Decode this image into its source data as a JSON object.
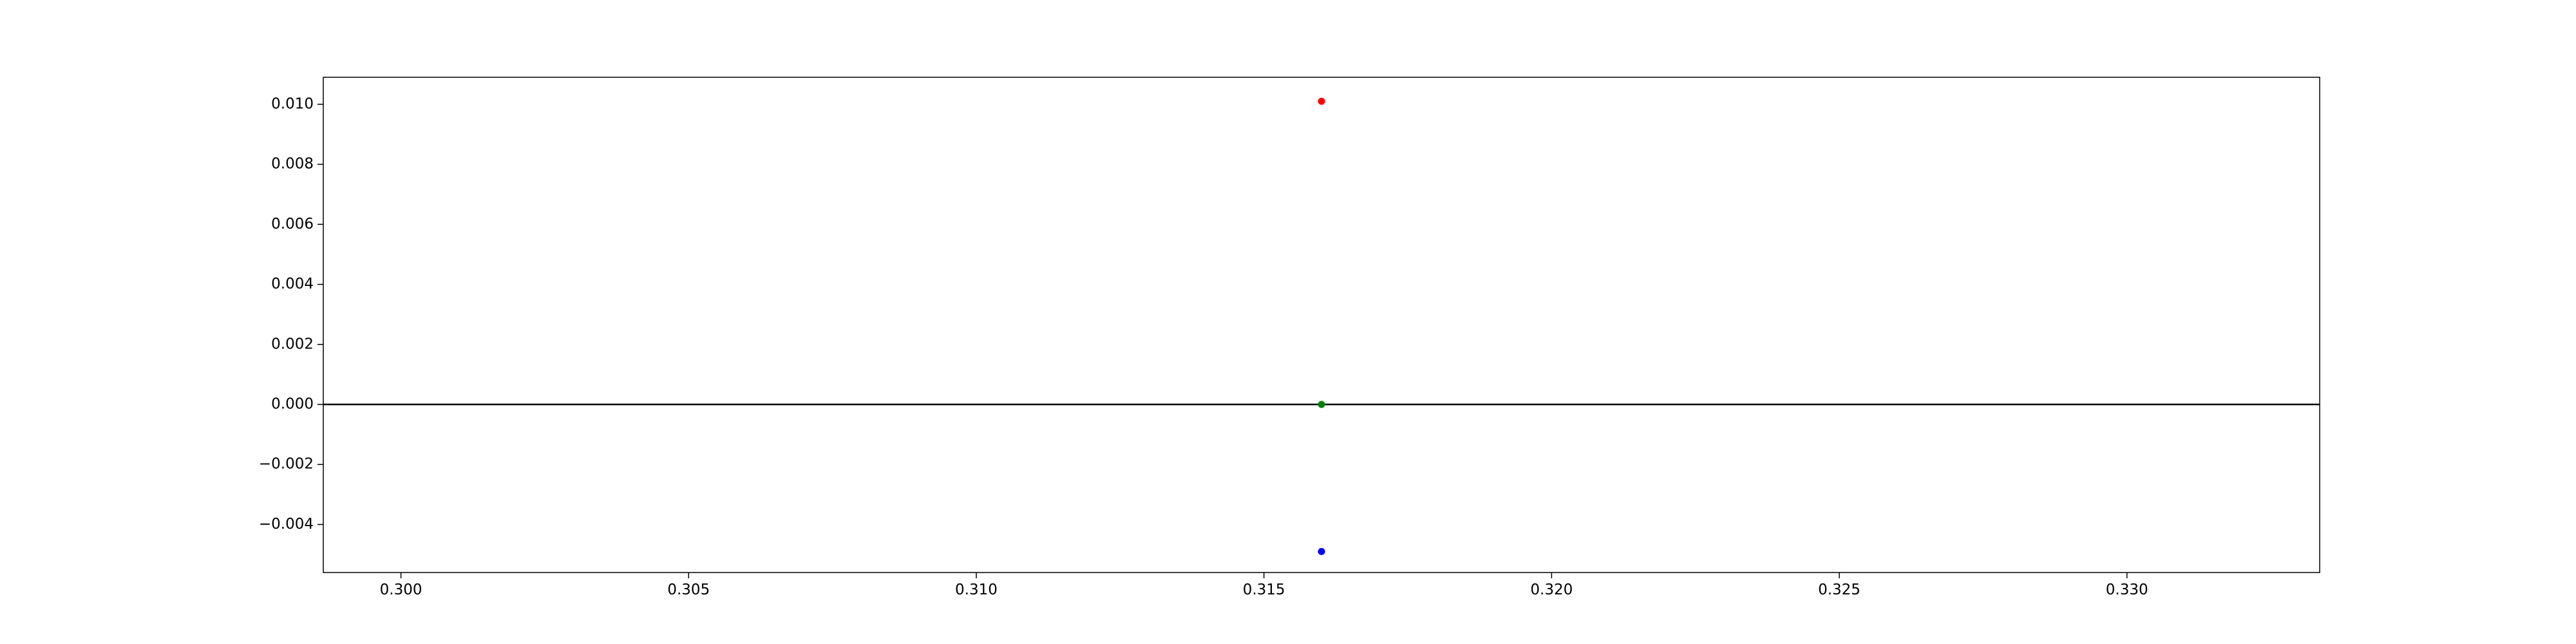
{
  "chart_data": {
    "type": "scatter",
    "title": "",
    "xlabel": "",
    "ylabel": "",
    "xlim": [
      0.29865,
      0.33335
    ],
    "ylim": [
      -0.0056,
      0.0109
    ],
    "grid": false,
    "legend": "none",
    "xticks": [
      0.3,
      0.305,
      0.31,
      0.315,
      0.32,
      0.325,
      0.33
    ],
    "xtick_labels": [
      "0.300",
      "0.305",
      "0.310",
      "0.315",
      "0.320",
      "0.325",
      "0.330"
    ],
    "yticks": [
      -0.004,
      -0.002,
      0.0,
      0.002,
      0.004,
      0.006,
      0.008,
      0.01
    ],
    "ytick_labels": [
      "−0.004",
      "−0.002",
      "0.000",
      "0.002",
      "0.004",
      "0.006",
      "0.008",
      "0.010"
    ],
    "hline": {
      "y": 0.0,
      "color": "#000000"
    },
    "points": [
      {
        "x": 0.316,
        "y": 0.0101,
        "color": "#ff0000"
      },
      {
        "x": 0.316,
        "y": 0.0,
        "color": "#008000"
      },
      {
        "x": 0.316,
        "y": -0.0049,
        "color": "#0000ff"
      }
    ]
  }
}
